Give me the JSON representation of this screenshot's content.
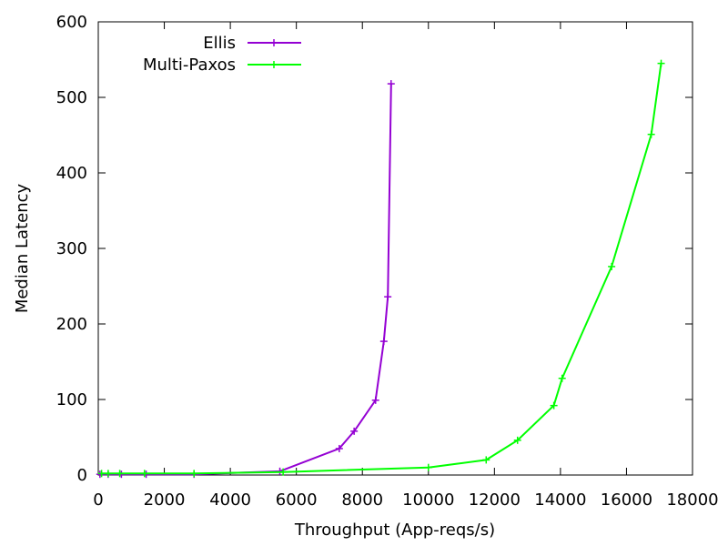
{
  "chart_data": {
    "type": "line",
    "title": "",
    "xlabel": "Throughput (App-reqs/s)",
    "ylabel": "Median Latency",
    "xlim": [
      0,
      18000
    ],
    "ylim": [
      0,
      600
    ],
    "xticks": [
      0,
      2000,
      4000,
      6000,
      8000,
      10000,
      12000,
      14000,
      16000,
      18000
    ],
    "yticks": [
      0,
      100,
      200,
      300,
      400,
      500,
      600
    ],
    "grid": false,
    "legend_position": "top-left",
    "series": [
      {
        "name": "Ellis",
        "color": "#9400d3",
        "marker": "plus",
        "x": [
          50,
          300,
          700,
          1450,
          2900,
          5500,
          7300,
          7750,
          8400,
          8650,
          8770,
          8870
        ],
        "y": [
          1,
          1,
          1,
          1,
          1,
          5,
          35,
          58,
          99,
          177,
          236,
          518
        ]
      },
      {
        "name": "Multi-Paxos",
        "color": "#00ff00",
        "marker": "plus",
        "x": [
          100,
          300,
          650,
          1400,
          2900,
          5600,
          10000,
          11750,
          12700,
          13800,
          14050,
          15550,
          16750,
          17050
        ],
        "y": [
          2,
          2,
          2,
          2,
          2,
          4,
          10,
          20,
          46,
          92,
          128,
          276,
          451,
          545
        ]
      }
    ]
  }
}
